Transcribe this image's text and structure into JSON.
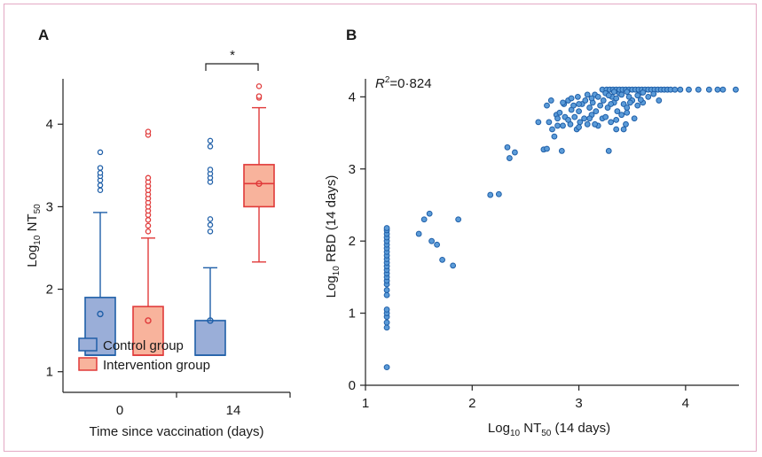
{
  "colors": {
    "control_stroke": "#1f5fa8",
    "control_fill": "#9aaed8",
    "intervention_stroke": "#e03a3a",
    "intervention_fill": "#f8b39c",
    "scatter_fill": "#5b9bd8",
    "scatter_stroke": "#1f5fa8"
  },
  "chart_data": [
    {
      "type": "box",
      "panel_label": "A",
      "ylabel_main": "Log",
      "ylabel_sub": "10",
      "ylabel_tail": " NT",
      "ylabel_sub2": "50",
      "xlabel": "Time since vaccination (days)",
      "ylim": [
        0.75,
        4.55
      ],
      "yticks": [
        "1",
        "2",
        "3",
        "4"
      ],
      "categories": [
        "0",
        "14"
      ],
      "significance": "*",
      "legend": [
        "Control group",
        "Intervention group"
      ],
      "legend_position": "bottom-left",
      "boxes": [
        {
          "group": "Control group",
          "day": "0",
          "whisker_low": 1.2,
          "q1": 1.2,
          "median": 1.2,
          "q3": 1.9,
          "whisker_high": 2.93,
          "mean": 1.7,
          "outliers": [
            3.2,
            3.26,
            3.32,
            3.37,
            3.41,
            3.47,
            3.66
          ]
        },
        {
          "group": "Intervention group",
          "day": "0",
          "whisker_low": 1.2,
          "q1": 1.2,
          "median": 1.2,
          "q3": 1.79,
          "whisker_high": 2.62,
          "mean": 1.62,
          "outliers": [
            2.7,
            2.77,
            2.84,
            2.9,
            2.95,
            3.0,
            3.05,
            3.1,
            3.15,
            3.2,
            3.25,
            3.3,
            3.35,
            3.87,
            3.91
          ]
        },
        {
          "group": "Control group",
          "day": "14",
          "whisker_low": 1.2,
          "q1": 1.2,
          "median": 1.2,
          "q3": 1.62,
          "whisker_high": 2.26,
          "mean": 1.62,
          "outliers": [
            2.7,
            2.78,
            2.85,
            3.3,
            3.35,
            3.4,
            3.45,
            3.73,
            3.8
          ]
        },
        {
          "group": "Intervention group",
          "day": "14",
          "whisker_low": 2.33,
          "q1": 3.0,
          "median": 3.28,
          "q3": 3.51,
          "whisker_high": 4.2,
          "mean": 3.28,
          "outliers": [
            4.32,
            4.34,
            4.46
          ]
        }
      ]
    },
    {
      "type": "scatter",
      "panel_label": "B",
      "annotation_r": "R",
      "annotation_sup": "2",
      "annotation_val": "=0·824",
      "xlabel_main": "Log",
      "xlabel_sub": "10",
      "xlabel_tail": " NT",
      "xlabel_sub2": "50",
      "xlabel_end": " (14 days)",
      "ylabel_main": "Log",
      "ylabel_sub": "10",
      "ylabel_tail": " RBD (14 days)",
      "xlim": [
        1,
        4.5
      ],
      "ylim": [
        0,
        4.25
      ],
      "xticks": [
        "1",
        "2",
        "3",
        "4"
      ],
      "yticks": [
        "0",
        "1",
        "2",
        "3",
        "4"
      ],
      "points": [
        [
          1.2,
          0.25
        ],
        [
          1.2,
          0.8
        ],
        [
          1.2,
          0.87
        ],
        [
          1.2,
          0.95
        ],
        [
          1.2,
          1.0
        ],
        [
          1.2,
          1.05
        ],
        [
          1.2,
          1.25
        ],
        [
          1.2,
          1.32
        ],
        [
          1.2,
          1.4
        ],
        [
          1.2,
          1.45
        ],
        [
          1.2,
          1.5
        ],
        [
          1.2,
          1.55
        ],
        [
          1.2,
          1.6
        ],
        [
          1.2,
          1.65
        ],
        [
          1.2,
          1.7
        ],
        [
          1.2,
          1.75
        ],
        [
          1.2,
          1.8
        ],
        [
          1.2,
          1.85
        ],
        [
          1.2,
          1.9
        ],
        [
          1.2,
          1.95
        ],
        [
          1.2,
          2.0
        ],
        [
          1.2,
          2.05
        ],
        [
          1.2,
          2.1
        ],
        [
          1.2,
          2.15
        ],
        [
          1.2,
          2.18
        ],
        [
          1.5,
          2.1
        ],
        [
          1.55,
          2.3
        ],
        [
          1.6,
          2.38
        ],
        [
          1.62,
          2.0
        ],
        [
          1.67,
          1.95
        ],
        [
          1.72,
          1.74
        ],
        [
          1.82,
          1.66
        ],
        [
          1.87,
          2.3
        ],
        [
          2.17,
          2.64
        ],
        [
          2.25,
          2.65
        ],
        [
          2.33,
          3.3
        ],
        [
          2.35,
          3.15
        ],
        [
          2.4,
          3.23
        ],
        [
          2.62,
          3.65
        ],
        [
          2.67,
          3.27
        ],
        [
          2.7,
          3.28
        ],
        [
          2.72,
          3.65
        ],
        [
          2.7,
          3.88
        ],
        [
          2.74,
          3.95
        ],
        [
          2.75,
          3.55
        ],
        [
          2.77,
          3.45
        ],
        [
          2.79,
          3.75
        ],
        [
          2.8,
          3.6
        ],
        [
          2.82,
          3.78
        ],
        [
          2.84,
          3.25
        ],
        [
          2.85,
          3.6
        ],
        [
          2.86,
          3.9
        ],
        [
          2.87,
          3.72
        ],
        [
          2.9,
          3.95
        ],
        [
          2.92,
          3.62
        ],
        [
          2.93,
          3.82
        ],
        [
          2.95,
          3.88
        ],
        [
          2.96,
          3.72
        ],
        [
          2.98,
          3.55
        ],
        [
          2.99,
          4.0
        ],
        [
          3.0,
          3.8
        ],
        [
          3.01,
          3.65
        ],
        [
          3.03,
          3.9
        ],
        [
          3.05,
          3.7
        ],
        [
          3.06,
          3.95
        ],
        [
          3.08,
          3.62
        ],
        [
          3.1,
          3.85
        ],
        [
          3.12,
          3.75
        ],
        [
          3.13,
          3.92
        ],
        [
          3.15,
          4.03
        ],
        [
          3.16,
          3.8
        ],
        [
          3.18,
          3.6
        ],
        [
          3.2,
          3.88
        ],
        [
          3.22,
          3.7
        ],
        [
          3.23,
          3.95
        ],
        [
          3.25,
          4.08
        ],
        [
          3.27,
          3.85
        ],
        [
          3.28,
          3.25
        ],
        [
          3.3,
          3.65
        ],
        [
          3.31,
          4.0
        ],
        [
          3.33,
          3.92
        ],
        [
          3.35,
          3.55
        ],
        [
          3.36,
          3.8
        ],
        [
          3.38,
          4.05
        ],
        [
          3.4,
          3.75
        ],
        [
          3.42,
          3.9
        ],
        [
          3.44,
          3.62
        ],
        [
          3.45,
          3.85
        ],
        [
          3.47,
          4.0
        ],
        [
          3.5,
          3.95
        ],
        [
          3.52,
          3.7
        ],
        [
          3.55,
          3.88
        ],
        [
          3.57,
          4.05
        ],
        [
          3.6,
          3.92
        ],
        [
          3.65,
          4.0
        ],
        [
          3.75,
          3.95
        ],
        [
          3.22,
          4.1
        ],
        [
          3.26,
          4.1
        ],
        [
          3.29,
          4.1
        ],
        [
          3.32,
          4.1
        ],
        [
          3.35,
          4.1
        ],
        [
          3.38,
          4.1
        ],
        [
          3.41,
          4.1
        ],
        [
          3.44,
          4.1
        ],
        [
          3.47,
          4.1
        ],
        [
          3.5,
          4.1
        ],
        [
          3.53,
          4.1
        ],
        [
          3.56,
          4.1
        ],
        [
          3.59,
          4.1
        ],
        [
          3.62,
          4.1
        ],
        [
          3.65,
          4.1
        ],
        [
          3.68,
          4.1
        ],
        [
          3.71,
          4.1
        ],
        [
          3.74,
          4.1
        ],
        [
          3.77,
          4.1
        ],
        [
          3.8,
          4.1
        ],
        [
          3.83,
          4.1
        ],
        [
          3.86,
          4.1
        ],
        [
          3.9,
          4.1
        ],
        [
          3.95,
          4.1
        ],
        [
          4.03,
          4.1
        ],
        [
          4.12,
          4.1
        ],
        [
          4.22,
          4.1
        ],
        [
          4.3,
          4.1
        ],
        [
          4.35,
          4.1
        ],
        [
          4.47,
          4.1
        ],
        [
          3.25,
          4.05
        ],
        [
          3.28,
          4.02
        ],
        [
          3.33,
          4.07
        ],
        [
          3.4,
          4.03
        ],
        [
          3.45,
          4.07
        ],
        [
          3.55,
          4.02
        ],
        [
          3.6,
          4.06
        ],
        [
          3.7,
          4.04
        ],
        [
          2.85,
          3.92
        ],
        [
          2.93,
          3.98
        ],
        [
          3.0,
          3.9
        ],
        [
          3.08,
          4.03
        ],
        [
          3.12,
          3.98
        ],
        [
          3.18,
          4.0
        ],
        [
          3.3,
          3.9
        ],
        [
          3.35,
          3.98
        ],
        [
          3.48,
          3.92
        ],
        [
          3.58,
          3.96
        ],
        [
          2.8,
          3.7
        ],
        [
          2.9,
          3.68
        ],
        [
          3.0,
          3.58
        ],
        [
          3.1,
          3.7
        ],
        [
          3.15,
          3.62
        ],
        [
          3.25,
          3.72
        ],
        [
          3.35,
          3.68
        ],
        [
          3.45,
          3.78
        ],
        [
          3.42,
          3.55
        ]
      ]
    }
  ]
}
